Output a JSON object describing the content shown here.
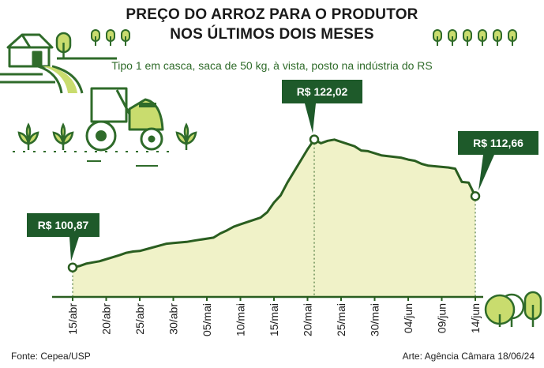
{
  "header": {
    "title_line1": "PREÇO DO ARROZ PARA O PRODUTOR",
    "title_line2": "NOS ÚLTIMOS DOIS MESES",
    "subtitle": "Tipo 1 em casca, saca de 50 kg, à vista, posto na indústria do RS"
  },
  "footer": {
    "source": "Fonte: Cepea/USP",
    "credit": "Arte: Agência Câmara 18/06/24"
  },
  "colors": {
    "line": "#2a5e20",
    "fill": "#f0f2c8",
    "label_bg": "#1e5a2a",
    "accent": "#c9dc6e",
    "ink": "#2f6b2a"
  },
  "chart_data": {
    "type": "area",
    "unit": "R$",
    "x_tick_labels": [
      "15/abr",
      "20/abr",
      "25/abr",
      "30/abr",
      "05/mai",
      "10/mai",
      "15/mai",
      "20/mai",
      "25/mai",
      "30/mai",
      "04/jun",
      "09/jun",
      "14/jun"
    ],
    "x_days": [
      0,
      5,
      10,
      15,
      20,
      25,
      30,
      35,
      40,
      45,
      50,
      55,
      60
    ],
    "x": [
      "15/abr",
      "16/abr",
      "17/abr",
      "18/abr",
      "19/abr",
      "22/abr",
      "23/abr",
      "24/abr",
      "25/abr",
      "26/abr",
      "29/abr",
      "30/abr",
      "02/mai",
      "03/mai",
      "06/mai",
      "07/mai",
      "08/mai",
      "09/mai",
      "10/mai",
      "13/mai",
      "14/mai",
      "15/mai",
      "16/mai",
      "17/mai",
      "20/mai",
      "21/mai",
      "22/mai",
      "23/mai",
      "24/mai",
      "27/mai",
      "28/mai",
      "29/mai",
      "31/mai",
      "03/jun",
      "04/jun",
      "05/jun",
      "06/jun",
      "07/jun",
      "10/jun",
      "11/jun",
      "12/jun",
      "13/jun",
      "14/jun"
    ],
    "values": [
      100.87,
      101.1,
      101.5,
      101.7,
      101.9,
      102.9,
      103.3,
      103.5,
      103.6,
      103.9,
      104.8,
      104.9,
      105.1,
      105.3,
      105.8,
      106.5,
      107.0,
      107.6,
      108.0,
      109.1,
      110.0,
      111.6,
      112.8,
      114.9,
      120.4,
      122.02,
      121.4,
      121.8,
      122.0,
      120.9,
      120.2,
      120.1,
      119.4,
      119.0,
      118.7,
      118.5,
      118.0,
      117.7,
      117.4,
      117.2,
      115.0,
      114.9,
      112.66
    ],
    "labeled_points": [
      {
        "date": "15/abr",
        "label": "R$ 100,87"
      },
      {
        "date": "21/mai",
        "label": "R$ 122,02"
      },
      {
        "date": "14/jun",
        "label": "R$ 112,66"
      }
    ],
    "ylim": [
      96,
      125.5
    ],
    "grid": false
  }
}
